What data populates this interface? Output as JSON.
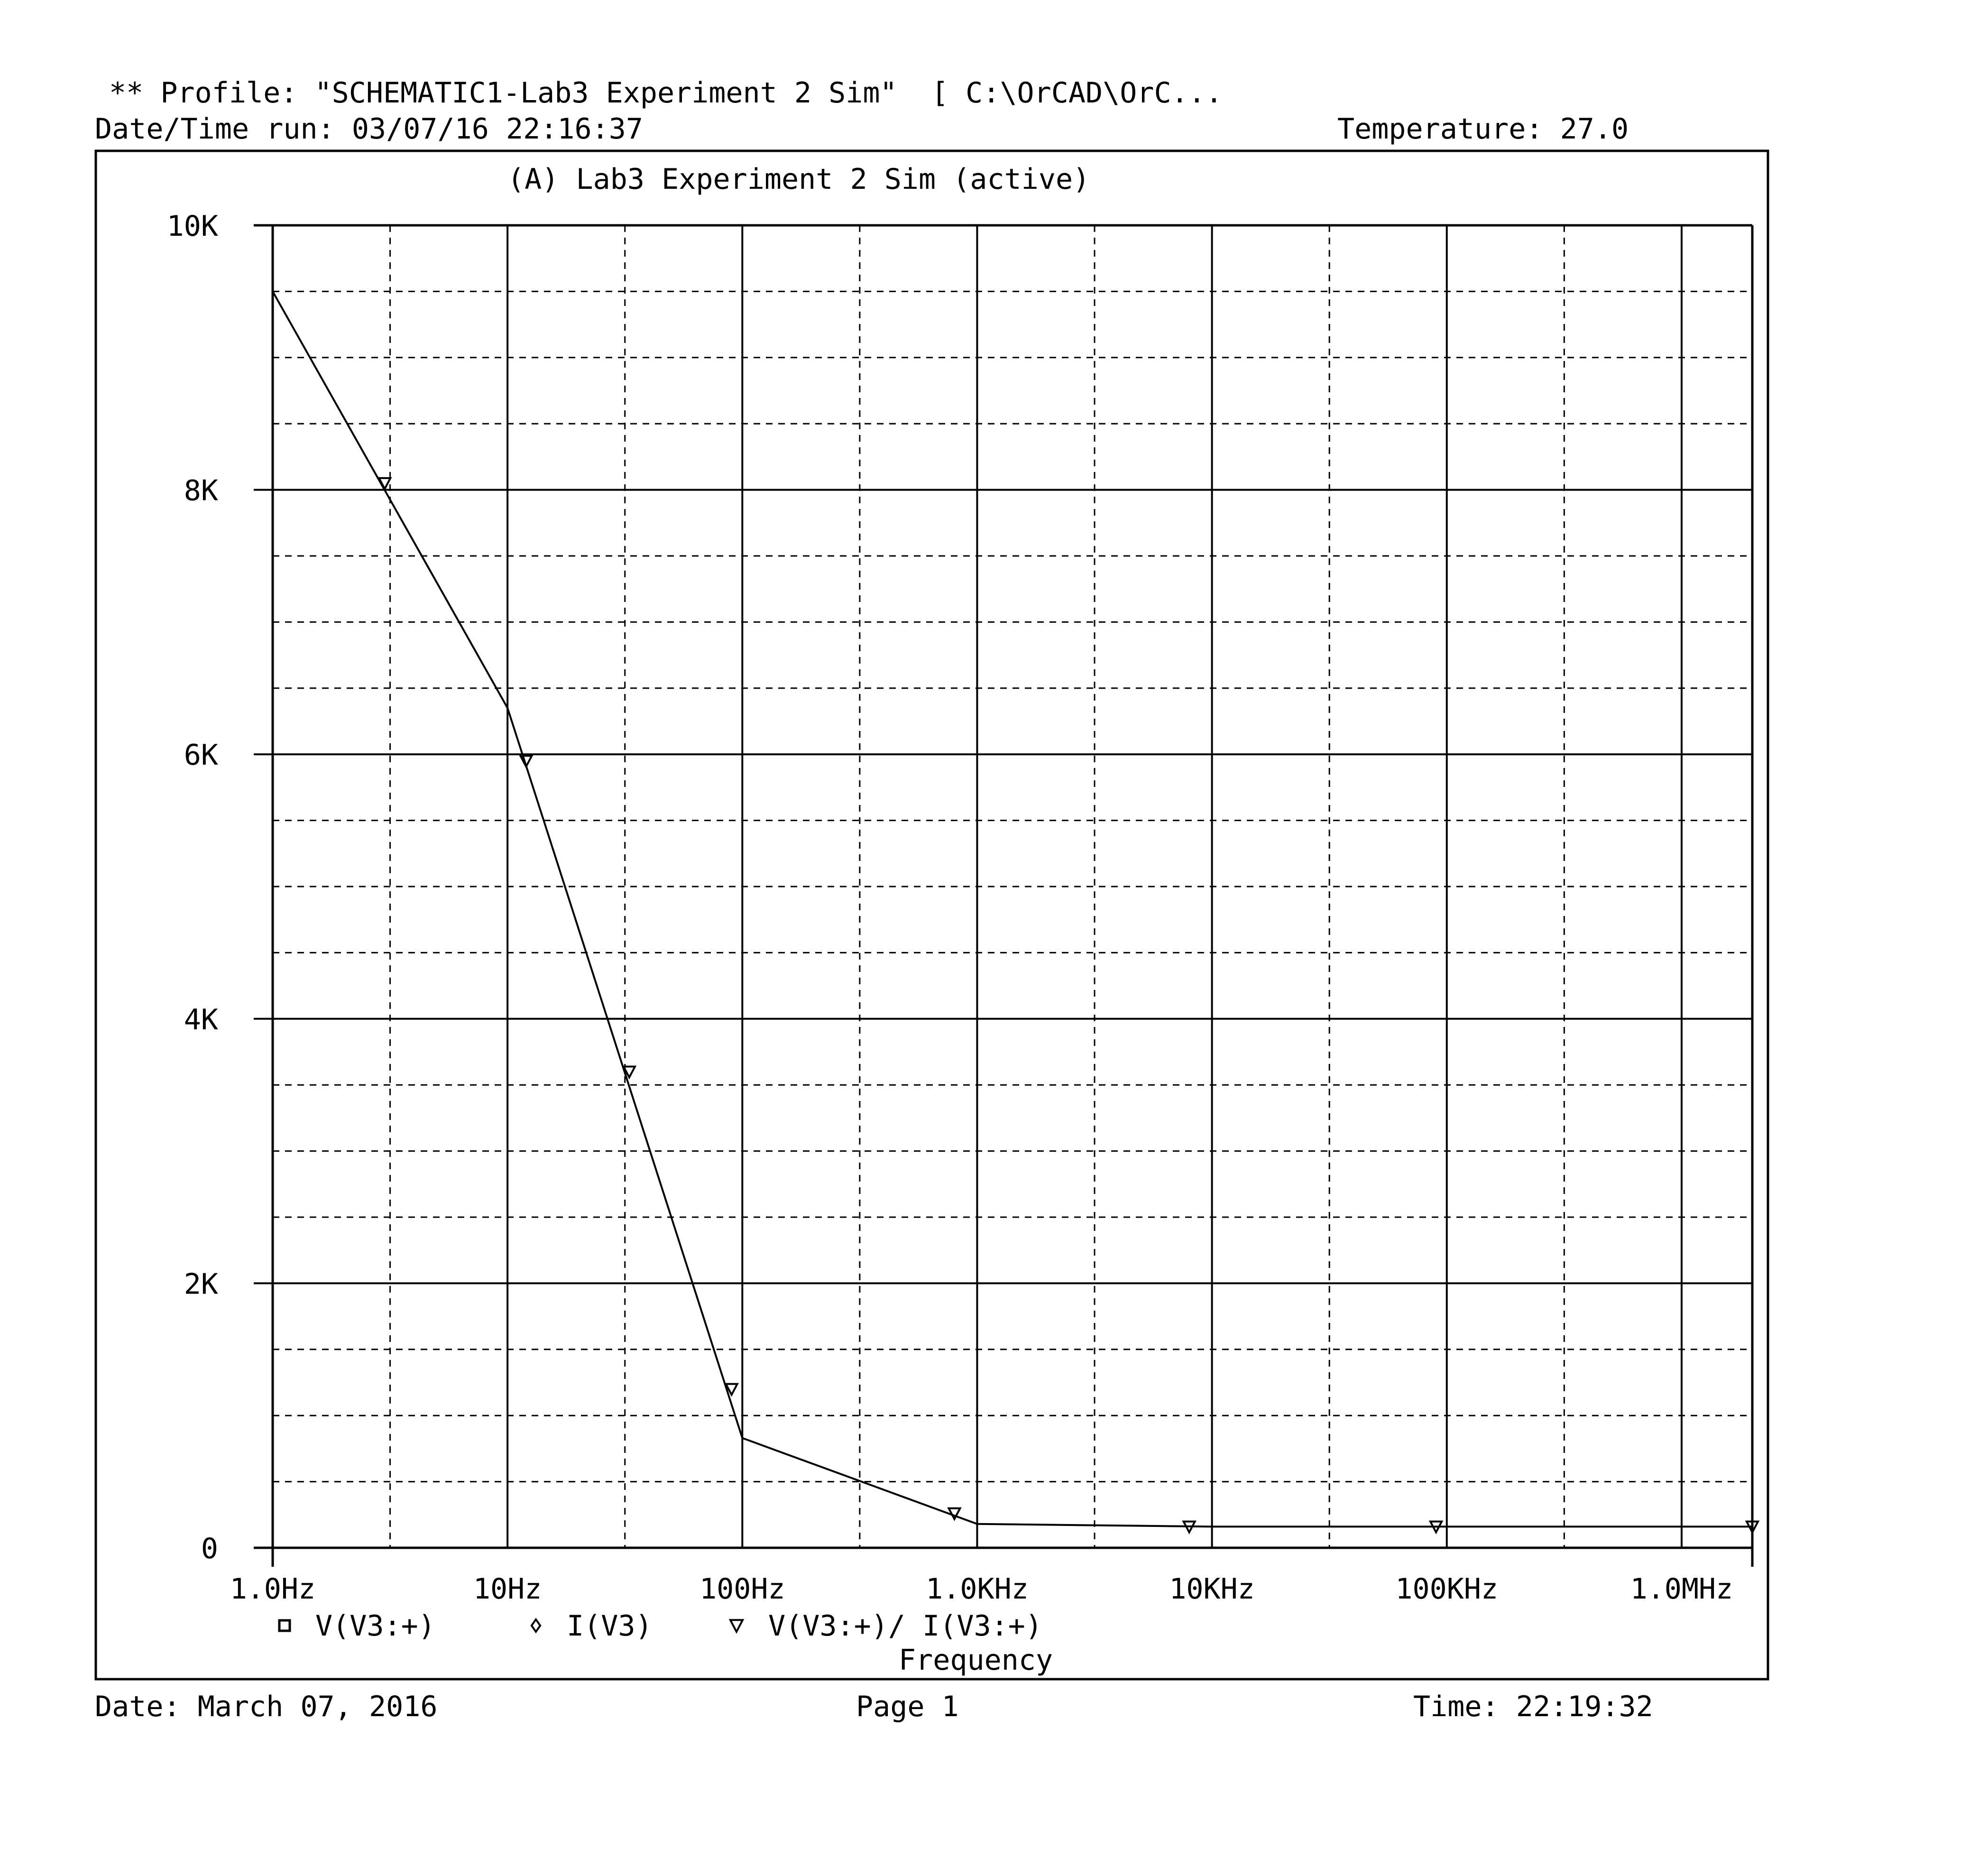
{
  "header": {
    "profile_line": "** Profile: \"SCHEMATIC1-Lab3 Experiment 2 Sim\"  [ C:\\OrCAD\\OrC...",
    "datetime_run": "Date/Time run: 03/07/16 22:16:37",
    "temperature": "Temperature: 27.0"
  },
  "footer": {
    "date": "Date: March 07, 2016",
    "page": "Page 1",
    "time": "Time: 22:19:32"
  },
  "colors": {
    "ink": "#000000",
    "background": "#ffffff"
  },
  "chart_data": {
    "type": "line",
    "title": "(A) Lab3 Experiment 2 Sim (active)",
    "xlabel": "Frequency",
    "ylabel": "",
    "x_scale": "log",
    "xlim": [
      1,
      2000000
    ],
    "ylim": [
      0,
      10000
    ],
    "grid": true,
    "x_ticks": [
      {
        "value": 1,
        "label": "1.0Hz"
      },
      {
        "value": 10,
        "label": "10Hz"
      },
      {
        "value": 100,
        "label": "100Hz"
      },
      {
        "value": 1000,
        "label": "1.0KHz"
      },
      {
        "value": 10000,
        "label": "10KHz"
      },
      {
        "value": 100000,
        "label": "100KHz"
      },
      {
        "value": 1000000,
        "label": "1.0MHz"
      }
    ],
    "y_ticks": [
      {
        "value": 0,
        "label": "0"
      },
      {
        "value": 2000,
        "label": "2K"
      },
      {
        "value": 4000,
        "label": "4K"
      },
      {
        "value": 6000,
        "label": "6K"
      },
      {
        "value": 8000,
        "label": "8K"
      },
      {
        "value": 10000,
        "label": "10K"
      }
    ],
    "legend": [
      {
        "marker": "square",
        "label": "V(V3:+)"
      },
      {
        "marker": "diamond",
        "label": "I(V3)"
      },
      {
        "marker": "triangle-down",
        "label": "V(V3:+)/ I(V3:+)"
      }
    ],
    "series": [
      {
        "name": "V(V3:+)/ I(V3:+)",
        "marker": "triangle-down",
        "x": [
          1,
          10,
          100,
          1000,
          10000,
          100000,
          1000000,
          2000000
        ],
        "y": [
          9500,
          6350,
          830,
          180,
          160,
          160,
          160,
          160
        ]
      }
    ],
    "marker_points": [
      {
        "x": 3,
        "y": 8050
      },
      {
        "x": 12,
        "y": 5950
      },
      {
        "x": 33,
        "y": 3600
      },
      {
        "x": 90,
        "y": 1200
      },
      {
        "x": 800,
        "y": 260
      },
      {
        "x": 8000,
        "y": 160
      },
      {
        "x": 90000,
        "y": 160
      },
      {
        "x": 2000000,
        "y": 160
      }
    ]
  }
}
